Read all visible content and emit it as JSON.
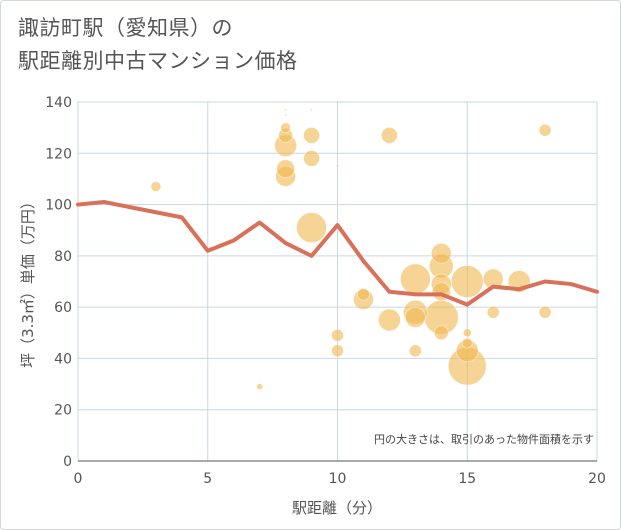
{
  "title_line1": "諏訪町駅（愛知県）の",
  "title_line2": "駅距離別中古マンション価格",
  "note": "円の大きさは、取引のあった物件面積を示す",
  "colors": {
    "line": "#d9705a",
    "bubble": "#f0b74f",
    "grid": "#c9d7e6",
    "axis": "#555555"
  },
  "chart_data": {
    "type": "scatter",
    "xlabel": "駅距離（分）",
    "ylabel": "坪（3.3㎡）単価（万円）",
    "xlim": [
      0,
      20
    ],
    "ylim": [
      0,
      140
    ],
    "xticks": [
      0,
      5,
      10,
      15,
      20
    ],
    "yticks": [
      0,
      20,
      40,
      60,
      80,
      100,
      120,
      140
    ],
    "line": {
      "x": [
        0,
        1,
        2,
        3,
        4,
        5,
        6,
        7,
        8,
        9,
        10,
        11,
        12,
        13,
        14,
        15,
        16,
        17,
        18,
        19,
        20
      ],
      "y": [
        100,
        101,
        99,
        97,
        95,
        82,
        86,
        93,
        85,
        80,
        92,
        78,
        66,
        65,
        65,
        61,
        68,
        67,
        70,
        69,
        66
      ]
    },
    "bubbles": [
      {
        "x": 3,
        "y": 107,
        "size": 5
      },
      {
        "x": 7,
        "y": 29,
        "size": 3
      },
      {
        "x": 8,
        "y": 137,
        "size": 1
      },
      {
        "x": 8,
        "y": 135,
        "size": 1
      },
      {
        "x": 8,
        "y": 130,
        "size": 5
      },
      {
        "x": 8,
        "y": 127,
        "size": 7
      },
      {
        "x": 8,
        "y": 123,
        "size": 11
      },
      {
        "x": 8,
        "y": 114,
        "size": 9
      },
      {
        "x": 8,
        "y": 111,
        "size": 10
      },
      {
        "x": 9,
        "y": 137,
        "size": 1
      },
      {
        "x": 9,
        "y": 127,
        "size": 8
      },
      {
        "x": 9,
        "y": 118,
        "size": 8
      },
      {
        "x": 9,
        "y": 91,
        "size": 15
      },
      {
        "x": 10,
        "y": 115,
        "size": 0.5
      },
      {
        "x": 10,
        "y": 49,
        "size": 6
      },
      {
        "x": 10,
        "y": 43,
        "size": 6
      },
      {
        "x": 11,
        "y": 65,
        "size": 6
      },
      {
        "x": 11,
        "y": 63,
        "size": 10
      },
      {
        "x": 12,
        "y": 127,
        "size": 8
      },
      {
        "x": 12,
        "y": 55,
        "size": 11
      },
      {
        "x": 13,
        "y": 71,
        "size": 15
      },
      {
        "x": 13,
        "y": 58,
        "size": 12
      },
      {
        "x": 13,
        "y": 56,
        "size": 10
      },
      {
        "x": 13,
        "y": 43,
        "size": 6
      },
      {
        "x": 14,
        "y": 81,
        "size": 10
      },
      {
        "x": 14,
        "y": 76,
        "size": 12
      },
      {
        "x": 14,
        "y": 69,
        "size": 10
      },
      {
        "x": 14,
        "y": 66,
        "size": 9
      },
      {
        "x": 14,
        "y": 56,
        "size": 17
      },
      {
        "x": 14,
        "y": 50,
        "size": 7
      },
      {
        "x": 15,
        "y": 70,
        "size": 16
      },
      {
        "x": 15,
        "y": 50,
        "size": 4
      },
      {
        "x": 15,
        "y": 46,
        "size": 5
      },
      {
        "x": 15,
        "y": 43,
        "size": 11
      },
      {
        "x": 15,
        "y": 37,
        "size": 19
      },
      {
        "x": 16,
        "y": 71,
        "size": 10
      },
      {
        "x": 16,
        "y": 58,
        "size": 6
      },
      {
        "x": 17,
        "y": 70,
        "size": 11
      },
      {
        "x": 18,
        "y": 129,
        "size": 6
      },
      {
        "x": 18,
        "y": 58,
        "size": 6
      }
    ]
  }
}
